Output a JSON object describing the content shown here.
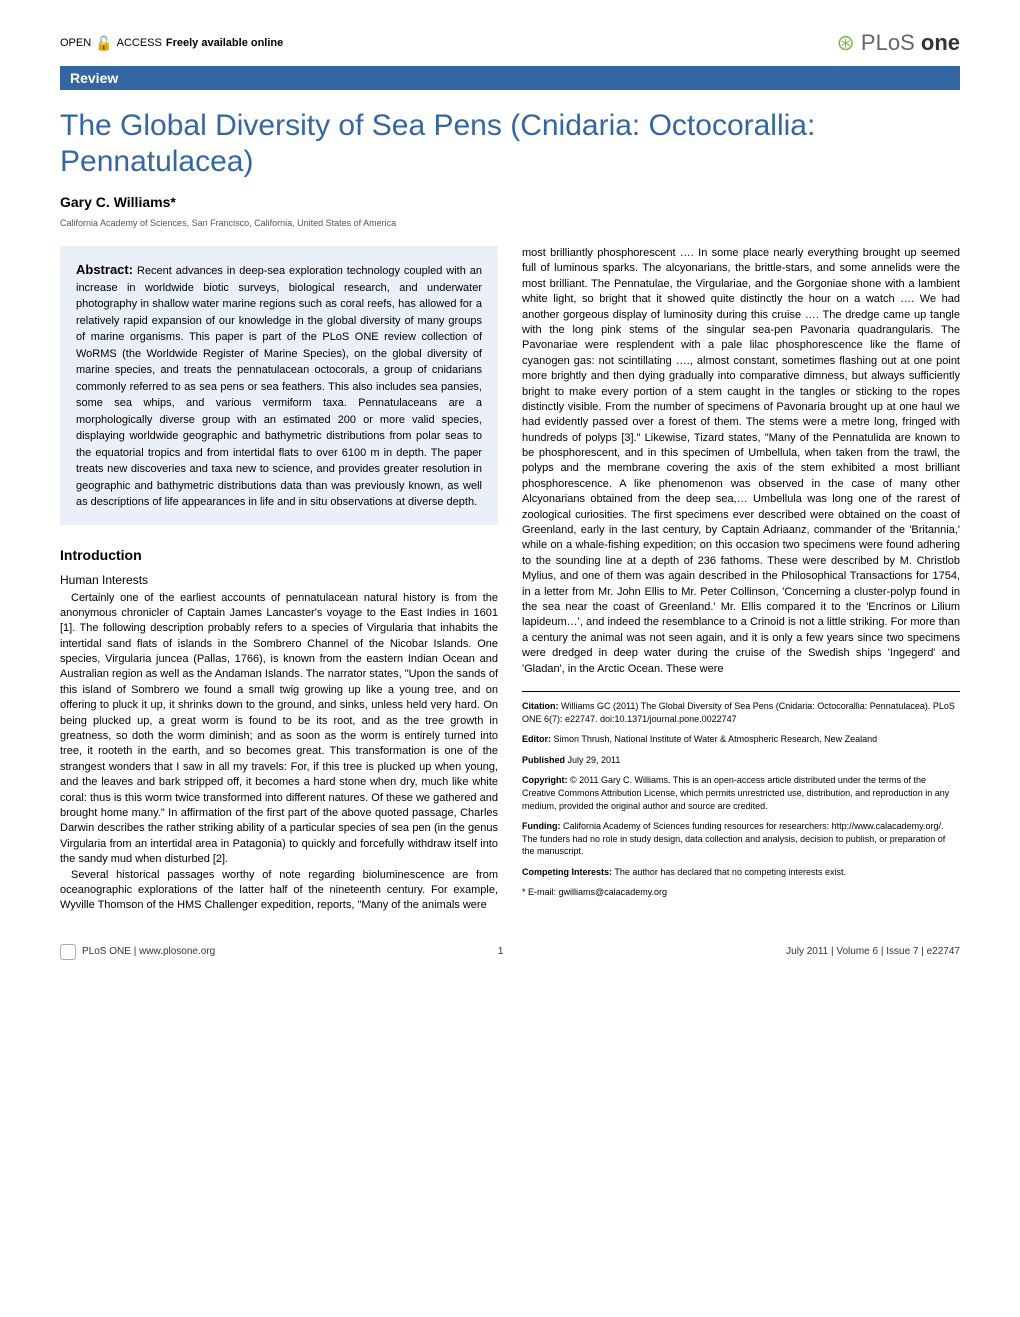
{
  "header": {
    "open_access": "OPEN",
    "access_icon": "🔓",
    "access_text": "ACCESS",
    "freely_available": "Freely available online",
    "plos_label": "PLoS",
    "one_label": "one"
  },
  "review_label": "Review",
  "title": "The Global Diversity of Sea Pens (Cnidaria: Octocorallia: Pennatulacea)",
  "author": "Gary C. Williams*",
  "affiliation": "California Academy of Sciences, San Francisco, California, United States of America",
  "abstract": {
    "label": "Abstract:",
    "text": "Recent advances in deep-sea exploration technology coupled with an increase in worldwide biotic surveys, biological research, and underwater photography in shallow water marine regions such as coral reefs, has allowed for a relatively rapid expansion of our knowledge in the global diversity of many groups of marine organisms. This paper is part of the PLoS ONE review collection of WoRMS (the Worldwide Register of Marine Species), on the global diversity of marine species, and treats the pennatulacean octocorals, a group of cnidarians commonly referred to as sea pens or sea feathers. This also includes sea pansies, some sea whips, and various vermiform taxa. Pennatulaceans are a morphologically diverse group with an estimated 200 or more valid species, displaying worldwide geographic and bathymetric distributions from polar seas to the equatorial tropics and from intertidal flats to over 6100 m in depth. The paper treats new discoveries and taxa new to science, and provides greater resolution in geographic and bathymetric distributions data than was previously known, as well as descriptions of life appearances in life and in situ observations at diverse depth."
  },
  "intro_heading": "Introduction",
  "subsection": "Human Interests",
  "left_body": "Certainly one of the earliest accounts of pennatulacean natural history is from the anonymous chronicler of Captain James Lancaster's voyage to the East Indies in 1601 [1]. The following description probably refers to a species of Virgularia that inhabits the intertidal sand flats of islands in the Sombrero Channel of the Nicobar Islands. One species, Virgularia juncea (Pallas, 1766), is known from the eastern Indian Ocean and Australian region as well as the Andaman Islands. The narrator states, \"Upon the sands of this island of Sombrero we found a small twig growing up like a young tree, and on offering to pluck it up, it shrinks down to the ground, and sinks, unless held very hard. On being plucked up, a great worm is found to be its root, and as the tree growth in greatness, so doth the worm diminish; and as soon as the worm is entirely turned into tree, it rooteth in the earth, and so becomes great. This transformation is one of the strangest wonders that I saw in all my travels: For, if this tree is plucked up when young, and the leaves and bark stripped off, it becomes a hard stone when dry, much like white coral: thus is this worm twice transformed into different natures. Of these we gathered and brought home many.\" In affirmation of the first part of the above quoted passage, Charles Darwin describes the rather striking ability of a particular species of sea pen (in the genus Virgularia from an intertidal area in Patagonia) to quickly and forcefully withdraw itself into the sandy mud when disturbed [2].",
  "left_body2": "Several historical passages worthy of note regarding bioluminescence are from oceanographic explorations of the latter half of the nineteenth century. For example, Wyville Thomson of the HMS Challenger expedition, reports, \"Many of the animals were",
  "right_body": "most brilliantly phosphorescent …. In some place nearly everything brought up seemed full of luminous sparks. The alcyonarians, the brittle-stars, and some annelids were the most brilliant. The Pennatulae, the Virgulariae, and the Gorgoniae shone with a lambient white light, so bright that it showed quite distinctly the hour on a watch …. We had another gorgeous display of luminosity during this cruise …. The dredge came up tangle with the long pink stems of the singular sea-pen Pavonaria quadrangularis. The Pavonariae were resplendent with a pale lilac phosphorescence like the flame of cyanogen gas: not scintillating …., almost constant, sometimes flashing out at one point more brightly and then dying gradually into comparative dimness, but always sufficiently bright to make every portion of a stem caught in the tangles or sticking to the ropes distinctly visible. From the number of specimens of Pavonaria brought up at one haul we had evidently passed over a forest of them. The stems were a metre long, fringed with hundreds of polyps [3].\" Likewise, Tizard states, \"Many of the Pennatulida are known to be phosphorescent, and in this specimen of Umbellula, when taken from the trawl, the polyps and the membrane covering the axis of the stem exhibited a most brilliant phosphorescence. A like phenomenon was observed in the case of many other Alcyonarians obtained from the deep sea,… Umbellula was long one of the rarest of zoological curiosities. The first specimens ever described were obtained on the coast of Greenland, early in the last century, by Captain Adriaanz, commander of the 'Britannia,' while on a whale-fishing expedition; on this occasion two specimens were found adhering to the sounding line at a depth of 236 fathoms. These were described by M. Christlob Mylius, and one of them was again described in the Philosophical Transactions for 1754, in a letter from Mr. John Ellis to Mr. Peter Collinson, 'Concerning a cluster-polyp found in the sea near the coast of Greenland.' Mr. Ellis compared it to the 'Encrinos or Lilium lapideum…', and indeed the resemblance to a Crinoid is not a little striking. For more than a century the animal was not seen again, and it is only a few years since two specimens were dredged in deep water during the cruise of the Swedish ships 'Ingegerd' and 'Gladan', in the Arctic Ocean. These were",
  "citation": {
    "citation_label": "Citation:",
    "citation_text": "Williams GC (2011) The Global Diversity of Sea Pens (Cnidaria: Octocorallia: Pennatulacea). PLoS ONE 6(7): e22747. doi:10.1371/journal.pone.0022747",
    "editor_label": "Editor:",
    "editor_text": "Simon Thrush, National Institute of Water & Atmospheric Research, New Zealand",
    "published_label": "Published",
    "published_text": "July 29, 2011",
    "copyright_label": "Copyright:",
    "copyright_text": "© 2011 Gary C. Williams. This is an open-access article distributed under the terms of the Creative Commons Attribution License, which permits unrestricted use, distribution, and reproduction in any medium, provided the original author and source are credited.",
    "funding_label": "Funding:",
    "funding_text": "California Academy of Sciences funding resources for researchers: http://www.calacademy.org/. The funders had no role in study design, data collection and analysis, decision to publish, or preparation of the manuscript.",
    "competing_label": "Competing Interests:",
    "competing_text": "The author has declared that no competing interests exist.",
    "email_label": "* E-mail:",
    "email_text": "gwilliams@calacademy.org"
  },
  "footer": {
    "site": "PLoS ONE | www.plosone.org",
    "page": "1",
    "issue": "July 2011 | Volume 6 | Issue 7 | e22747"
  },
  "colors": {
    "blue_bar": "#3366a3",
    "title_blue": "#3366a3",
    "abstract_bg": "#eaf0f7",
    "orange_icon": "#f7941e",
    "text": "#000000",
    "gray": "#666666"
  },
  "typography": {
    "title_size": 30,
    "body_size": 11,
    "citation_size": 9,
    "heading_size": 14
  }
}
